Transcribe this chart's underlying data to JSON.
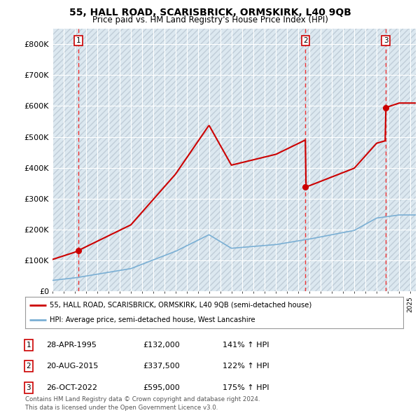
{
  "title1": "55, HALL ROAD, SCARISBRICK, ORMSKIRK, L40 9QB",
  "title2": "Price paid vs. HM Land Registry's House Price Index (HPI)",
  "legend_line1": "55, HALL ROAD, SCARISBRICK, ORMSKIRK, L40 9QB (semi-detached house)",
  "legend_line2": "HPI: Average price, semi-detached house, West Lancashire",
  "footer": "Contains HM Land Registry data © Crown copyright and database right 2024.\nThis data is licensed under the Open Government Licence v3.0.",
  "sale_prices": [
    132000,
    337500,
    595000
  ],
  "sale_labels": [
    "1",
    "2",
    "3"
  ],
  "sale_decimal": [
    1995.32,
    2015.63,
    2022.81
  ],
  "sale_info": [
    {
      "label": "1",
      "date": "28-APR-1995",
      "price": "£132,000",
      "hpi": "141% ↑ HPI"
    },
    {
      "label": "2",
      "date": "20-AUG-2015",
      "price": "£337,500",
      "hpi": "122% ↑ HPI"
    },
    {
      "label": "3",
      "date": "26-OCT-2022",
      "price": "£595,000",
      "hpi": "175% ↑ HPI"
    }
  ],
  "hpi_color": "#7aafd4",
  "price_color": "#cc0000",
  "dashed_line_color": "#ee3333",
  "bg_color": "#ffffff",
  "plot_bg_color": "#dce8f0",
  "hatch_color": "#c0cdd8",
  "ylim": [
    0,
    850000
  ],
  "xlim": [
    1993,
    2025.5
  ],
  "yticks": [
    0,
    100000,
    200000,
    300000,
    400000,
    500000,
    600000,
    700000,
    800000
  ],
  "ytick_labels": [
    "£0",
    "£100K",
    "£200K",
    "£300K",
    "£400K",
    "£500K",
    "£600K",
    "£700K",
    "£800K"
  ]
}
